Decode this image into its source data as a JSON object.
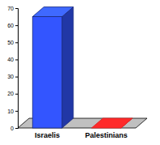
{
  "chart_data": {
    "type": "bar",
    "categories": [
      "Israelis",
      "Palestinians"
    ],
    "values": [
      65,
      0
    ],
    "colors": [
      "#3355ff",
      "#dd2222"
    ],
    "ylim": [
      0,
      70
    ],
    "yticks": [
      0,
      10,
      20,
      30,
      40,
      50,
      60,
      70
    ],
    "grid": false
  }
}
